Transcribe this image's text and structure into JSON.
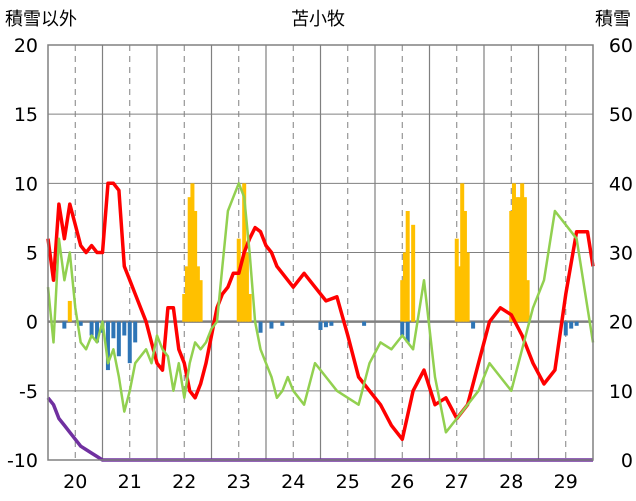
{
  "chart_data": {
    "type": "line",
    "title": "苫小牧",
    "ylabel_left": "積雪以外",
    "ylabel_right": "積雪",
    "x_ticks": [
      "20",
      "21",
      "22",
      "23",
      "24",
      "25",
      "26",
      "27",
      "28",
      "29"
    ],
    "xlim": [
      19.5,
      29.5
    ],
    "ylim_left": [
      -10,
      20
    ],
    "ylim_right": [
      0,
      60
    ],
    "yticks_left": [
      "20",
      "15",
      "10",
      "5",
      "0",
      "-5",
      "-10"
    ],
    "yticks_right": [
      "60",
      "50",
      "40",
      "30",
      "20",
      "10",
      "0"
    ],
    "grid": {
      "vertical_dashed": true,
      "horizontal_solid": true
    },
    "colors": {
      "red_line": "#ff0000",
      "green_line": "#92d050",
      "purple_line": "#7030a0",
      "orange_bars": "#ffc000",
      "blue_bars": "#2e75b6",
      "zero_line": "#808080",
      "grid": "#808080",
      "frame": "#808080"
    },
    "series": [
      {
        "color_key": "red_line",
        "axis": "left",
        "x": [
          19.5,
          19.6,
          19.7,
          19.8,
          19.9,
          20.0,
          20.1,
          20.2,
          20.3,
          20.4,
          20.5,
          20.6,
          20.7,
          20.8,
          20.9,
          21.0,
          21.1,
          21.2,
          21.3,
          21.4,
          21.5,
          21.6,
          21.7,
          21.8,
          21.9,
          22.0,
          22.1,
          22.2,
          22.3,
          22.4,
          22.5,
          22.6,
          22.7,
          22.8,
          22.9,
          23.0,
          23.1,
          23.2,
          23.3,
          23.4,
          23.5,
          23.6,
          23.7,
          23.8,
          23.9,
          24.0,
          24.2,
          24.4,
          24.6,
          24.8,
          25.0,
          25.2,
          25.4,
          25.6,
          25.8,
          26.0,
          26.2,
          26.4,
          26.6,
          26.8,
          27.0,
          27.2,
          27.4,
          27.6,
          27.8,
          28.0,
          28.2,
          28.4,
          28.6,
          28.8,
          29.0,
          29.2,
          29.4,
          29.5
        ],
        "y": [
          6,
          3,
          8.5,
          6,
          8.5,
          7,
          5.5,
          5,
          5.5,
          5,
          5,
          10,
          10,
          9.5,
          4,
          3,
          2,
          1,
          0,
          -1.5,
          -3,
          -3.5,
          1,
          1,
          -2,
          -3,
          -5,
          -5.5,
          -4.5,
          -3,
          -1,
          1,
          2,
          2.5,
          3.5,
          3.5,
          5,
          6,
          6.8,
          6.5,
          5.5,
          5,
          4,
          3.5,
          3,
          2.5,
          3.5,
          2.5,
          1.5,
          1.8,
          -1,
          -4,
          -5,
          -6,
          -7.5,
          -8.5,
          -5,
          -3.5,
          -6,
          -5.5,
          -7,
          -6,
          -3,
          0,
          1,
          0.5,
          -1,
          -3,
          -4.5,
          -3.5,
          2,
          6.5,
          6.5,
          4
        ]
      },
      {
        "color_key": "green_line",
        "axis": "left",
        "x": [
          19.5,
          19.6,
          19.7,
          19.8,
          19.9,
          20.0,
          20.1,
          20.2,
          20.3,
          20.4,
          20.5,
          20.6,
          20.7,
          20.8,
          20.9,
          21.0,
          21.1,
          21.2,
          21.3,
          21.4,
          21.5,
          21.6,
          21.7,
          21.8,
          21.9,
          22.0,
          22.1,
          22.2,
          22.3,
          22.4,
          22.5,
          22.6,
          22.7,
          22.8,
          22.9,
          23.0,
          23.1,
          23.2,
          23.3,
          23.4,
          23.5,
          23.6,
          23.7,
          23.8,
          23.9,
          24.0,
          24.2,
          24.4,
          24.6,
          24.8,
          25.0,
          25.2,
          25.4,
          25.6,
          25.8,
          26.0,
          26.2,
          26.4,
          26.6,
          26.8,
          27.0,
          27.2,
          27.4,
          27.6,
          27.8,
          28.0,
          28.2,
          28.4,
          28.6,
          28.8,
          29.0,
          29.2,
          29.4,
          29.5
        ],
        "y": [
          2.5,
          -1.5,
          6,
          3,
          5,
          1,
          -1.5,
          -2,
          -1,
          -1.5,
          0,
          -3,
          -2,
          -4,
          -6.5,
          -5,
          -3,
          -2.5,
          -2,
          -3,
          -1,
          -2,
          -2.5,
          -5,
          -3,
          -5.5,
          -3,
          -1.5,
          -2,
          -1.5,
          -0.5,
          0,
          4,
          8,
          9,
          10,
          9,
          5,
          0,
          -2,
          -3,
          -4,
          -5.5,
          -5,
          -4,
          -5,
          -6,
          -3,
          -4,
          -5,
          -5.5,
          -6,
          -3,
          -1.5,
          -2,
          -1,
          -2,
          3,
          -4,
          -8,
          -7,
          -6,
          -5,
          -3,
          -4,
          -5,
          -2,
          1,
          3,
          8,
          7,
          6,
          1,
          -1.5
        ]
      },
      {
        "color_key": "purple_line",
        "axis": "right",
        "x": [
          19.5,
          19.6,
          19.7,
          19.8,
          19.9,
          20.0,
          20.1,
          20.2,
          20.3,
          20.4,
          20.5,
          20.6,
          20.7,
          21.0,
          22.0,
          23.0,
          24.0,
          25.0,
          26.0,
          27.0,
          28.0,
          29.0,
          29.5
        ],
        "y": [
          9,
          8,
          6,
          5,
          4,
          3,
          2,
          1.5,
          1,
          0.5,
          0,
          0,
          0,
          0,
          0,
          0,
          0,
          0,
          0,
          0,
          0,
          0,
          0
        ]
      }
    ],
    "bars_orange": {
      "axis": "left",
      "x": [
        19.9,
        22.0,
        22.05,
        22.1,
        22.15,
        22.2,
        22.25,
        22.3,
        23.0,
        23.05,
        23.1,
        23.15,
        23.2,
        26.0,
        26.05,
        26.1,
        26.2,
        27.0,
        27.05,
        27.1,
        27.15,
        27.2,
        28.0,
        28.05,
        28.1,
        28.15,
        28.2,
        28.25,
        28.3
      ],
      "y": [
        1.5,
        2,
        4,
        9,
        10,
        8,
        4,
        3,
        6,
        4,
        10,
        5,
        2,
        3,
        5,
        8,
        7,
        6,
        4,
        10,
        8,
        5,
        8,
        10,
        9,
        9,
        10,
        9,
        3
      ]
    },
    "bars_blue": {
      "axis": "left",
      "x": [
        19.8,
        20.1,
        20.3,
        20.4,
        20.5,
        20.6,
        20.7,
        20.8,
        20.9,
        21.0,
        21.1,
        23.4,
        23.6,
        23.8,
        24.5,
        24.6,
        24.7,
        25.3,
        26.0,
        26.1,
        27.3,
        29.0,
        29.1,
        29.2
      ],
      "y": [
        -0.5,
        -0.3,
        -1,
        -1.5,
        -0.8,
        -3.5,
        -1.2,
        -2.5,
        -1,
        -3,
        -1.5,
        -0.8,
        -0.5,
        -0.3,
        -0.6,
        -0.4,
        -0.3,
        -0.3,
        -1,
        -1.5,
        -0.5,
        -1,
        -0.5,
        -0.3
      ]
    }
  }
}
